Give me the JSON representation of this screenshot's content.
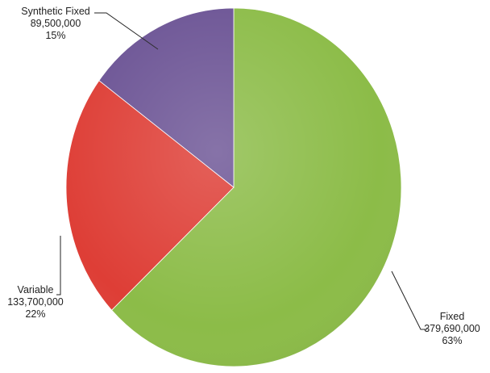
{
  "chart_data": {
    "type": "pie",
    "title": "",
    "start_angle_deg": 0,
    "direction": "clockwise",
    "slices": [
      {
        "name": "Fixed",
        "value": 379690000,
        "value_label": "379,690,000",
        "percent_label": "63%",
        "color": "#8cbc48"
      },
      {
        "name": "Variable",
        "value": 133700000,
        "value_label": "133,700,000",
        "percent_label": "22%",
        "color": "#de3e36"
      },
      {
        "name": "Synthetic Fixed",
        "value": 89500000,
        "value_label": "89,500,000",
        "percent_label": "15%",
        "color": "#6c5495"
      }
    ]
  }
}
